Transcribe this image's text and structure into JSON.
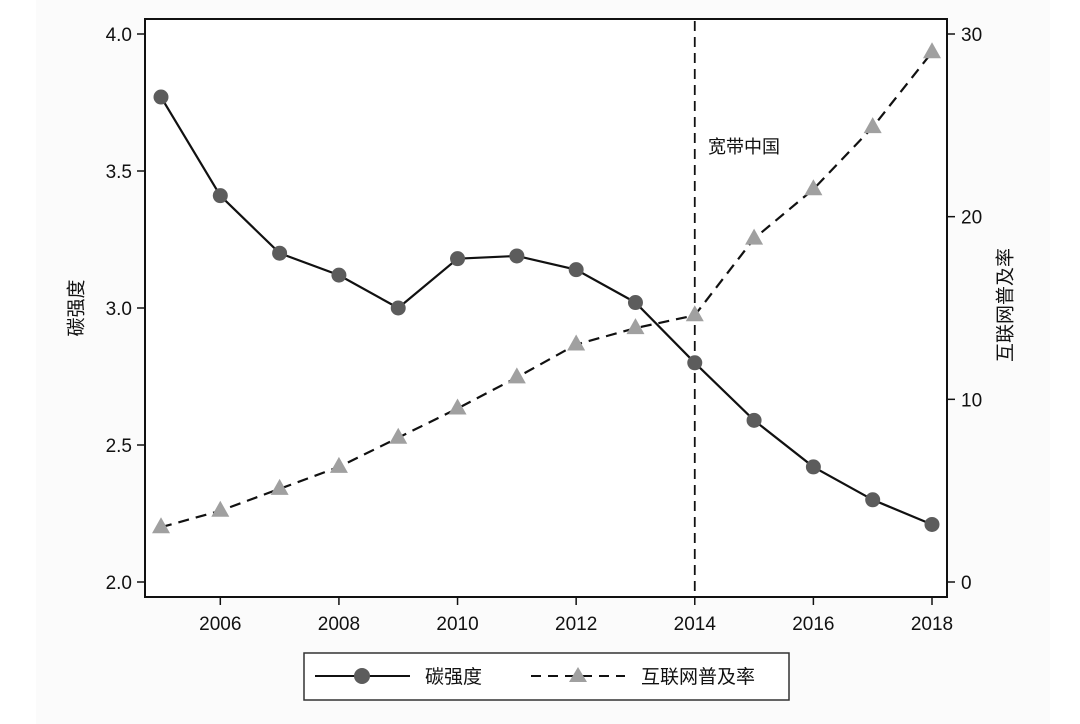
{
  "chart_data": {
    "type": "line",
    "title": "",
    "xlabel": "",
    "ylabel": "碳强度",
    "ylabel_right": "互联网普及率",
    "x": [
      2005,
      2006,
      2007,
      2008,
      2009,
      2010,
      2011,
      2012,
      2013,
      2014,
      2015,
      2016,
      2017,
      2018
    ],
    "xlim": [
      2005,
      2018
    ],
    "x_ticks": [
      2006,
      2008,
      2010,
      2012,
      2014,
      2016,
      2018
    ],
    "ylim": [
      2.0,
      4.0
    ],
    "y_ticks": [
      "2.0",
      "2.5",
      "3.0",
      "3.5",
      "4.0"
    ],
    "ylim_right": [
      0,
      30
    ],
    "y_ticks_right": [
      "0",
      "10",
      "20",
      "30"
    ],
    "grid": false,
    "legend_position": "bottom",
    "series": [
      {
        "name": "碳强度",
        "axis": "left",
        "style": "solid",
        "marker": "circle",
        "color": "#555555",
        "values": [
          3.77,
          3.41,
          3.2,
          3.12,
          3.0,
          3.18,
          3.19,
          3.14,
          3.02,
          2.8,
          2.59,
          2.42,
          2.3,
          2.21
        ]
      },
      {
        "name": "互联网普及率",
        "axis": "right",
        "style": "dashed",
        "marker": "triangle",
        "color": "#9a9a9a",
        "values": [
          3.0,
          3.9,
          5.1,
          6.3,
          7.9,
          9.5,
          11.2,
          13.0,
          13.9,
          14.6,
          18.8,
          21.5,
          24.9,
          29.0
        ]
      }
    ],
    "annotations": [
      {
        "type": "vline",
        "x": 2014,
        "style": "dashed",
        "label": "宽带中国"
      }
    ]
  }
}
